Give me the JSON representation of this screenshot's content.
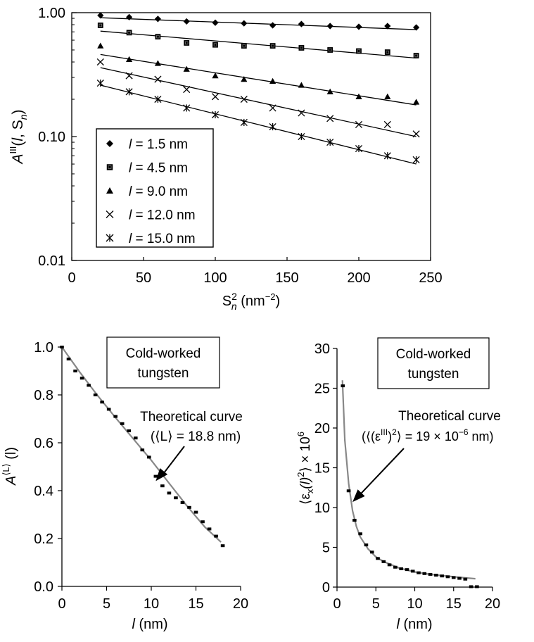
{
  "chart_data": [
    {
      "type": "scatter",
      "y_scale": "log",
      "xlim": [
        0,
        250
      ],
      "ylim": [
        0.01,
        1.0
      ],
      "x_ticks": [
        "0",
        "50",
        "100",
        "150",
        "200",
        "250"
      ],
      "y_ticks": [
        "0.01",
        "0.10",
        "1.00"
      ],
      "xlabel": {
        "main": "S",
        "sup": "2",
        "sub": "n",
        "rest": " (nm",
        "rest_sup": "−2",
        "end": ")"
      },
      "ylabel": {
        "main": "A",
        "sup": "III",
        "rest_open": "(",
        "l": "l",
        "comma": ", S",
        "sub": "n",
        "rest_close": ")"
      },
      "legend_position": "bottom-left",
      "series": [
        {
          "name": "l = 1.5 nm",
          "legend_var": "l",
          "legend_rest": " = 1.5 nm",
          "marker": "diamond",
          "x": [
            20,
            40,
            60,
            80,
            100,
            120,
            140,
            160,
            180,
            200,
            220,
            240
          ],
          "y": [
            0.95,
            0.92,
            0.89,
            0.85,
            0.83,
            0.82,
            0.79,
            0.81,
            0.78,
            0.77,
            0.78,
            0.76
          ],
          "fit": [
            [
              20,
              0.91
            ],
            [
              240,
              0.73
            ]
          ]
        },
        {
          "name": "l = 4.5 nm",
          "legend_var": "l",
          "legend_rest": " = 4.5 nm",
          "marker": "square",
          "x": [
            20,
            40,
            60,
            80,
            100,
            120,
            140,
            160,
            180,
            200,
            220,
            240
          ],
          "y": [
            0.79,
            0.69,
            0.64,
            0.57,
            0.55,
            0.54,
            0.54,
            0.52,
            0.5,
            0.49,
            0.48,
            0.45
          ],
          "fit": [
            [
              20,
              0.71
            ],
            [
              240,
              0.43
            ]
          ]
        },
        {
          "name": "l = 9.0 nm",
          "legend_var": "l",
          "legend_rest": " = 9.0 nm",
          "marker": "triangle",
          "x": [
            20,
            40,
            60,
            80,
            100,
            120,
            140,
            160,
            180,
            200,
            220,
            240
          ],
          "y": [
            0.54,
            0.42,
            0.39,
            0.35,
            0.31,
            0.29,
            0.28,
            0.26,
            0.23,
            0.21,
            0.21,
            0.19
          ],
          "fit": [
            [
              20,
              0.46
            ],
            [
              240,
              0.18
            ]
          ]
        },
        {
          "name": "l = 12.0 nm",
          "legend_var": "l",
          "legend_rest": " = 12.0 nm",
          "marker": "cross",
          "x": [
            20,
            40,
            60,
            80,
            100,
            120,
            140,
            160,
            180,
            200,
            220,
            240
          ],
          "y": [
            0.4,
            0.31,
            0.29,
            0.24,
            0.21,
            0.2,
            0.17,
            0.155,
            0.14,
            0.125,
            0.125,
            0.105
          ],
          "fit": [
            [
              20,
              0.36
            ],
            [
              240,
              0.1
            ]
          ]
        },
        {
          "name": "l = 15.0 nm",
          "legend_var": "l",
          "legend_rest": " = 15.0 nm",
          "marker": "asterisk",
          "x": [
            20,
            40,
            60,
            80,
            100,
            120,
            140,
            160,
            180,
            200,
            220,
            240
          ],
          "y": [
            0.27,
            0.23,
            0.2,
            0.17,
            0.15,
            0.13,
            0.12,
            0.1,
            0.09,
            0.08,
            0.07,
            0.065
          ],
          "fit": [
            [
              20,
              0.26
            ],
            [
              240,
              0.06
            ]
          ]
        }
      ]
    },
    {
      "type": "scatter",
      "xlim": [
        0,
        20
      ],
      "ylim": [
        0,
        1.0
      ],
      "x_ticks": [
        "0",
        "5",
        "10",
        "15",
        "20"
      ],
      "y_ticks": [
        "0.0",
        "0.2",
        "0.4",
        "0.6",
        "0.8",
        "1.0"
      ],
      "xlabel": {
        "var": "l",
        "rest": " (nm)"
      },
      "ylabel": {
        "main": "A",
        "sup": "⟨L⟩",
        "rest": " (l)"
      },
      "box_text": [
        "Cold-worked",
        "tungsten"
      ],
      "annotation": {
        "line1": "Theoretical curve",
        "line2": "(⟨L⟩ = 18.8 nm)",
        "arrow_tip": [
          10.5,
          0.44
        ]
      },
      "data": {
        "x": [
          0,
          0.75,
          1.5,
          2.25,
          3,
          3.75,
          4.5,
          5.25,
          6,
          6.75,
          7.5,
          8.25,
          9,
          9.75,
          10.5,
          11.25,
          12,
          12.75,
          13.5,
          14.25,
          15,
          15.75,
          16.5,
          17.25,
          18
        ],
        "y": [
          1.0,
          0.95,
          0.9,
          0.87,
          0.84,
          0.8,
          0.77,
          0.74,
          0.71,
          0.68,
          0.65,
          0.62,
          0.57,
          0.54,
          0.46,
          0.42,
          0.39,
          0.37,
          0.35,
          0.33,
          0.31,
          0.27,
          0.24,
          0.21,
          0.17
        ]
      },
      "curve": {
        "x": [
          0,
          2,
          4,
          6,
          8,
          10,
          12,
          14,
          16,
          17.8
        ],
        "y": [
          1.0,
          0.895,
          0.797,
          0.705,
          0.616,
          0.527,
          0.431,
          0.336,
          0.248,
          0.185
        ]
      }
    },
    {
      "type": "scatter",
      "xlim": [
        0,
        20
      ],
      "ylim": [
        0,
        30
      ],
      "x_ticks": [
        "0",
        "5",
        "10",
        "15",
        "20"
      ],
      "y_ticks": [
        "0",
        "5",
        "10",
        "15",
        "20",
        "25",
        "30"
      ],
      "xlabel": {
        "var": "l",
        "rest": " (nm)"
      },
      "ylabel": {
        "open": "⟨ε",
        "sub": "x",
        "mid": "(l)",
        "sup": "2",
        "close": "⟩ × 10",
        "sup2": "6"
      },
      "box_text": [
        "Cold-worked",
        "tungsten"
      ],
      "annotation": {
        "line1": "Theoretical curve",
        "line2": "(⟨(ε",
        "line2_sup": "III",
        "line2_mid": ")",
        "line2_sup2": "2",
        "line2_end": "⟩ = 19 × 10",
        "line2_sup3": "−6",
        "line2_tail": " nm)",
        "arrow_tip": [
          2.0,
          10.7
        ]
      },
      "data": {
        "x": [
          0.75,
          1.5,
          2.25,
          3,
          3.75,
          4.5,
          5.25,
          6,
          6.75,
          7.5,
          8.25,
          9,
          9.75,
          10.5,
          11.25,
          12,
          12.75,
          13.5,
          14.25,
          15,
          15.75,
          16.5,
          17.25,
          18
        ],
        "y": [
          25.3,
          12.1,
          8.4,
          6.7,
          5.3,
          4.4,
          3.6,
          3.2,
          2.8,
          2.5,
          2.3,
          2.2,
          2.0,
          1.8,
          1.7,
          1.6,
          1.5,
          1.4,
          1.3,
          1.2,
          1.1,
          1.0,
          0.05,
          0.05
        ]
      },
      "curve": {
        "x": [
          0.7,
          1.0,
          1.5,
          2.0,
          2.5,
          3,
          4,
          5,
          6,
          8,
          10,
          12,
          14,
          16,
          17.8
        ],
        "y": [
          26,
          18.5,
          13.0,
          9.6,
          7.6,
          6.3,
          4.8,
          3.8,
          3.2,
          2.4,
          1.9,
          1.6,
          1.4,
          1.2,
          1.05
        ]
      }
    }
  ]
}
